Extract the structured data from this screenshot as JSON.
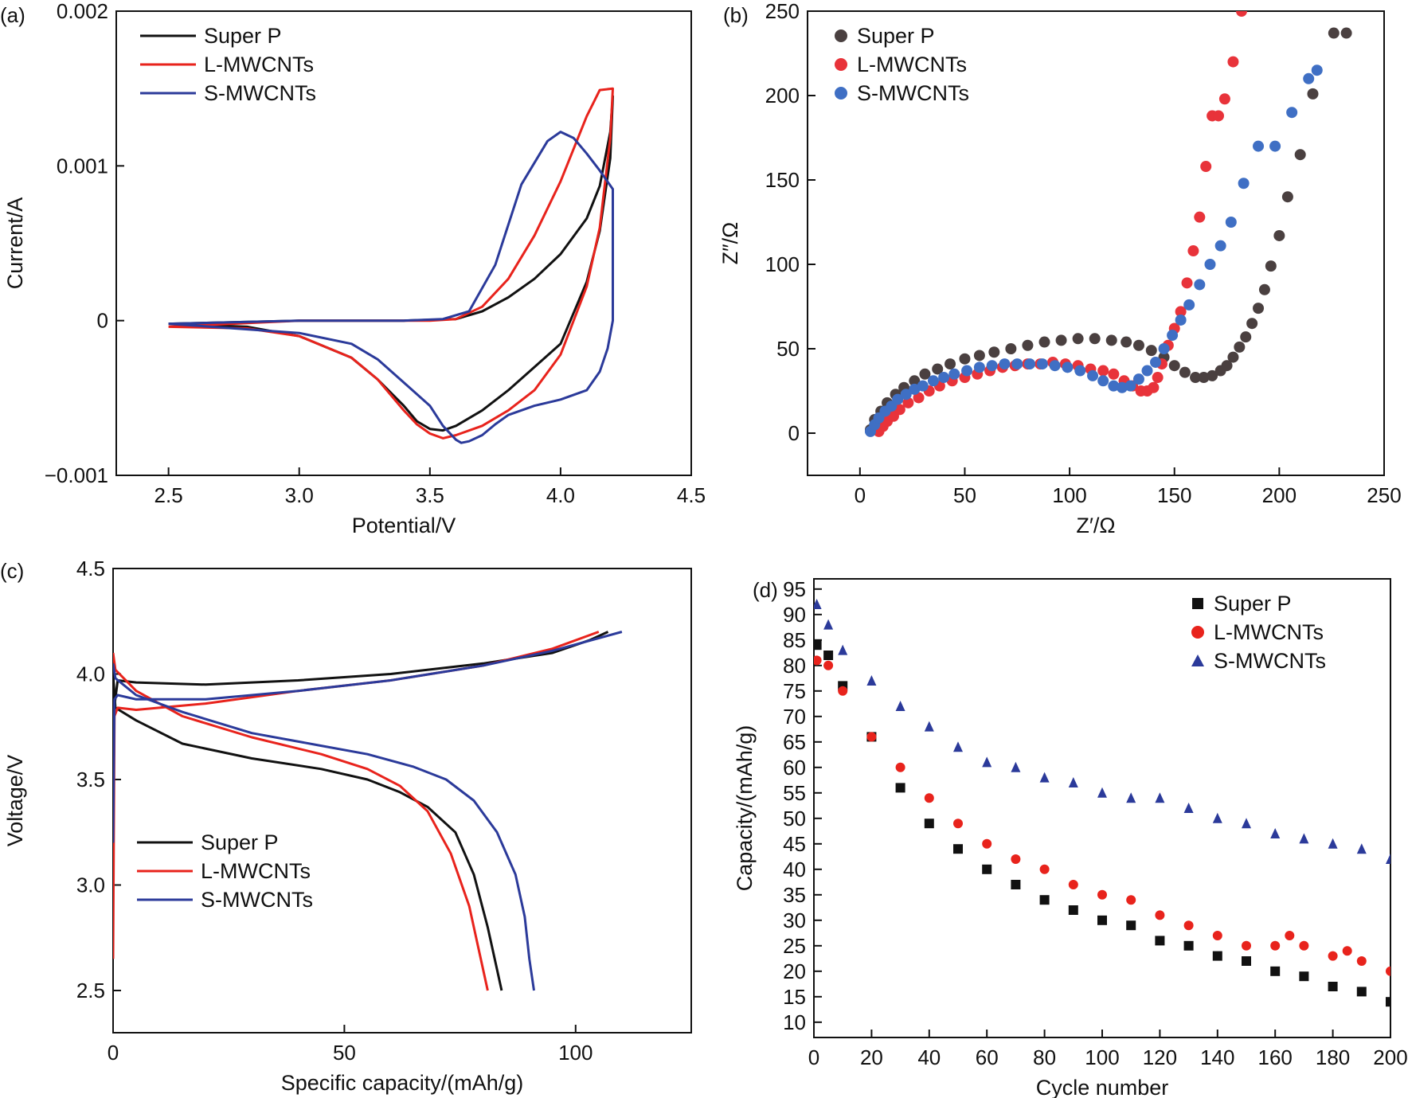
{
  "colors": {
    "super_p": "#111111",
    "l_mwcnts": "#e8231c",
    "s_mwcnts": "#2b3a9a",
    "eis_super_p": "#4a4040",
    "eis_l": "#e8333a",
    "eis_s": "#3f6fc4"
  },
  "chart_data": [
    {
      "id": "a",
      "panel_label": "(a)",
      "type": "line",
      "xlabel": "Potential/V",
      "ylabel": "Current/A",
      "xlim": [
        2.3,
        4.5
      ],
      "ylim": [
        -0.001,
        0.002
      ],
      "xticks": [
        2.5,
        3.0,
        3.5,
        4.0,
        4.5
      ],
      "xtick_labels": [
        "2.5",
        "3.0",
        "3.5",
        "4.0",
        "4.5"
      ],
      "yticks": [
        -0.001,
        0,
        0.001,
        0.002
      ],
      "ytick_labels": [
        "−0.001",
        "0",
        "0.001",
        "0.002"
      ],
      "legend_position": "top-left",
      "series": [
        {
          "name": "Super P",
          "color_key": "super_p",
          "x": [
            2.5,
            3.0,
            3.4,
            3.6,
            3.7,
            3.8,
            3.9,
            4.0,
            4.1,
            4.15,
            4.19,
            4.2,
            4.19,
            4.15,
            4.1,
            4.0,
            3.9,
            3.8,
            3.7,
            3.6,
            3.55,
            3.5,
            3.45,
            3.4,
            3.3,
            3.2,
            3.0,
            2.8,
            2.5
          ],
          "y": [
            -2e-05,
            0.0,
            0.0,
            1e-05,
            6e-05,
            0.00015,
            0.00027,
            0.00043,
            0.00066,
            0.00087,
            0.00122,
            0.00145,
            0.00105,
            0.00058,
            0.00025,
            -0.00015,
            -0.0003,
            -0.00045,
            -0.00058,
            -0.00068,
            -0.00071,
            -0.0007,
            -0.00065,
            -0.00055,
            -0.00038,
            -0.00024,
            -0.0001,
            -4e-05,
            -2e-05
          ]
        },
        {
          "name": "L-MWCNTs",
          "color_key": "l_mwcnts",
          "x": [
            2.5,
            3.0,
            3.5,
            3.6,
            3.7,
            3.8,
            3.9,
            4.0,
            4.1,
            4.15,
            4.2,
            4.19,
            4.15,
            4.1,
            4.0,
            3.9,
            3.8,
            3.7,
            3.6,
            3.55,
            3.5,
            3.45,
            3.4,
            3.3,
            3.2,
            3.0,
            2.8,
            2.5
          ],
          "y": [
            -4e-05,
            0.0,
            0.0,
            1e-05,
            9e-05,
            0.00027,
            0.00055,
            0.0009,
            0.00132,
            0.00149,
            0.0015,
            0.00118,
            0.0006,
            0.00022,
            -0.00022,
            -0.00045,
            -0.00058,
            -0.00068,
            -0.00074,
            -0.00076,
            -0.00073,
            -0.00067,
            -0.00058,
            -0.00038,
            -0.00024,
            -0.0001,
            -5e-05,
            -4e-05
          ]
        },
        {
          "name": "S-MWCNTs",
          "color_key": "s_mwcnts",
          "x": [
            2.5,
            3.0,
            3.4,
            3.55,
            3.65,
            3.75,
            3.85,
            3.95,
            4.0,
            4.05,
            4.1,
            4.15,
            4.2,
            4.2,
            4.18,
            4.15,
            4.1,
            4.0,
            3.9,
            3.8,
            3.75,
            3.7,
            3.65,
            3.62,
            3.6,
            3.55,
            3.5,
            3.4,
            3.3,
            3.2,
            3.0,
            2.5
          ],
          "y": [
            -2e-05,
            0.0,
            0.0,
            1e-05,
            6e-05,
            0.00036,
            0.00088,
            0.00116,
            0.00122,
            0.00118,
            0.00108,
            0.00097,
            0.00085,
            0.0,
            -0.00018,
            -0.00033,
            -0.00045,
            -0.00051,
            -0.00055,
            -0.00061,
            -0.00067,
            -0.00074,
            -0.00078,
            -0.00079,
            -0.00077,
            -0.00068,
            -0.00055,
            -0.0004,
            -0.00025,
            -0.00015,
            -8e-05,
            -2e-05
          ]
        }
      ]
    },
    {
      "id": "b",
      "panel_label": "(b)",
      "type": "scatter",
      "xlabel": "Z′/Ω",
      "ylabel": "Z″/Ω",
      "xlim": [
        -25,
        250
      ],
      "ylim": [
        -25,
        250
      ],
      "xticks": [
        0,
        50,
        100,
        150,
        200,
        250
      ],
      "xtick_labels": [
        "0",
        "50",
        "100",
        "150",
        "200",
        "250"
      ],
      "yticks": [
        0,
        50,
        100,
        150,
        200,
        250
      ],
      "ytick_labels": [
        "0",
        "50",
        "100",
        "150",
        "200",
        "250"
      ],
      "legend_position": "top-left",
      "series": [
        {
          "name": "Super P",
          "color_key": "eis_super_p",
          "x": [
            5,
            7,
            10,
            13,
            17,
            21,
            26,
            31,
            37,
            43,
            50,
            57,
            64,
            72,
            80,
            88,
            96,
            104,
            112,
            120,
            127,
            133,
            139,
            145,
            150,
            155,
            160,
            164,
            168,
            172,
            175,
            178,
            181,
            184,
            187,
            190,
            193,
            196,
            200,
            204,
            210,
            216,
            226,
            232
          ],
          "y": [
            2,
            8,
            13,
            18,
            23,
            27,
            31,
            35,
            38,
            41,
            44,
            46,
            48,
            50,
            52,
            54,
            55,
            56,
            56,
            55,
            54,
            52,
            49,
            45,
            40,
            36,
            33,
            33,
            34,
            37,
            40,
            45,
            51,
            57,
            65,
            74,
            85,
            99,
            117,
            140,
            165,
            201,
            237,
            237
          ]
        },
        {
          "name": "L-MWCNTs",
          "color_key": "eis_l",
          "x": [
            9,
            11,
            13,
            16,
            19,
            23,
            28,
            33,
            38,
            44,
            50,
            56,
            62,
            68,
            74,
            80,
            86,
            92,
            98,
            104,
            110,
            116,
            121,
            126,
            130,
            134,
            137,
            140,
            142,
            144,
            147,
            150,
            153,
            156,
            159,
            162,
            165,
            168,
            171,
            174,
            178,
            182
          ],
          "y": [
            1,
            4,
            7,
            10,
            14,
            18,
            21,
            25,
            28,
            31,
            33,
            35,
            37,
            39,
            40,
            41,
            41,
            42,
            41,
            40,
            38,
            37,
            35,
            31,
            28,
            25,
            25,
            27,
            33,
            41,
            52,
            62,
            72,
            89,
            108,
            128,
            158,
            188,
            188,
            198,
            220,
            250
          ]
        },
        {
          "name": "S-MWCNTs",
          "color_key": "eis_s",
          "x": [
            5,
            7,
            9,
            12,
            15,
            18,
            22,
            26,
            30,
            35,
            40,
            45,
            51,
            57,
            63,
            69,
            75,
            81,
            87,
            93,
            99,
            105,
            111,
            116,
            121,
            125,
            129,
            133,
            137,
            141,
            145,
            149,
            153,
            157,
            162,
            167,
            172,
            177,
            183,
            190,
            198,
            206,
            214,
            218
          ],
          "y": [
            1,
            5,
            9,
            13,
            16,
            20,
            23,
            26,
            28,
            31,
            33,
            35,
            37,
            39,
            40,
            41,
            41,
            41,
            41,
            40,
            39,
            37,
            34,
            31,
            28,
            27,
            28,
            32,
            37,
            42,
            50,
            58,
            67,
            76,
            88,
            100,
            111,
            125,
            148,
            170,
            170,
            190,
            210,
            215
          ]
        }
      ]
    },
    {
      "id": "c",
      "panel_label": "(c)",
      "type": "line",
      "xlabel": "Specific capacity/(mAh/g)",
      "ylabel": "Voltage/V",
      "xlim": [
        0,
        125
      ],
      "ylim": [
        2.3,
        4.5
      ],
      "xticks": [
        0,
        50,
        100
      ],
      "xtick_labels": [
        "0",
        "50",
        "100"
      ],
      "yticks": [
        2.5,
        3.0,
        3.5,
        4.0,
        4.5
      ],
      "ytick_labels": [
        "2.5",
        "3.0",
        "3.5",
        "4.0",
        "4.5"
      ],
      "legend_position": "bottom-left",
      "series": [
        {
          "name": "Super P",
          "color_key": "super_p",
          "charge_x": [
            0,
            0.3,
            1,
            5,
            20,
            40,
            60,
            80,
            95,
            103,
            107
          ],
          "charge_y": [
            3.25,
            3.85,
            3.97,
            3.96,
            3.95,
            3.97,
            4.0,
            4.05,
            4.1,
            4.16,
            4.2
          ],
          "discharge_x": [
            0,
            0.5,
            5,
            15,
            30,
            45,
            55,
            62,
            68,
            74,
            78,
            81,
            83,
            84
          ],
          "discharge_y": [
            4.0,
            3.84,
            3.78,
            3.67,
            3.6,
            3.55,
            3.5,
            3.44,
            3.37,
            3.25,
            3.05,
            2.8,
            2.6,
            2.5
          ]
        },
        {
          "name": "L-MWCNTs",
          "color_key": "l_mwcnts",
          "charge_x": [
            0,
            0.3,
            1,
            5,
            20,
            40,
            60,
            80,
            95,
            105
          ],
          "charge_y": [
            2.65,
            3.8,
            3.84,
            3.83,
            3.86,
            3.92,
            3.97,
            4.04,
            4.12,
            4.2
          ],
          "discharge_x": [
            0,
            0.5,
            5,
            15,
            30,
            45,
            55,
            62,
            68,
            73,
            77,
            79,
            81
          ],
          "discharge_y": [
            4.1,
            4.02,
            3.92,
            3.8,
            3.7,
            3.62,
            3.55,
            3.47,
            3.35,
            3.15,
            2.9,
            2.7,
            2.5
          ]
        },
        {
          "name": "S-MWCNTs",
          "color_key": "s_mwcnts",
          "charge_x": [
            0,
            0.3,
            1,
            5,
            20,
            40,
            60,
            80,
            95,
            110
          ],
          "charge_y": [
            3.2,
            3.88,
            3.9,
            3.88,
            3.88,
            3.92,
            3.97,
            4.04,
            4.11,
            4.2
          ],
          "discharge_x": [
            0,
            0.5,
            5,
            15,
            30,
            45,
            55,
            65,
            72,
            78,
            83,
            87,
            89,
            90,
            91
          ],
          "discharge_y": [
            4.05,
            3.98,
            3.9,
            3.82,
            3.72,
            3.66,
            3.62,
            3.56,
            3.5,
            3.4,
            3.25,
            3.05,
            2.85,
            2.65,
            2.5
          ]
        }
      ]
    },
    {
      "id": "d",
      "panel_label": "(d)",
      "type": "scatter",
      "xlabel": "Cycle number",
      "ylabel": "Capacity/(mAh/g)",
      "xlim": [
        0,
        200
      ],
      "ylim": [
        7,
        97
      ],
      "xticks": [
        0,
        20,
        40,
        60,
        80,
        100,
        120,
        140,
        160,
        180,
        200
      ],
      "xtick_labels": [
        "0",
        "20",
        "40",
        "60",
        "80",
        "100",
        "120",
        "140",
        "160",
        "180",
        "200"
      ],
      "yticks": [
        10,
        15,
        20,
        25,
        30,
        35,
        40,
        45,
        50,
        55,
        60,
        65,
        70,
        75,
        80,
        85,
        90,
        95
      ],
      "ytick_labels": [
        "10",
        "15",
        "20",
        "25",
        "30",
        "35",
        "40",
        "45",
        "50",
        "55",
        "60",
        "65",
        "70",
        "75",
        "80",
        "85",
        "90",
        "95"
      ],
      "legend_position": "top-right",
      "series": [
        {
          "name": "Super P",
          "marker": "square",
          "color_key": "super_p",
          "x": [
            1,
            5,
            10,
            20,
            30,
            40,
            50,
            60,
            70,
            80,
            90,
            100,
            110,
            120,
            130,
            140,
            150,
            160,
            170,
            180,
            190,
            200
          ],
          "y": [
            84,
            82,
            76,
            66,
            56,
            49,
            44,
            40,
            37,
            34,
            32,
            30,
            29,
            26,
            25,
            23,
            22,
            20,
            19,
            17,
            16,
            14
          ]
        },
        {
          "name": "L-MWCNTs",
          "marker": "circle",
          "color_key": "l_mwcnts",
          "x": [
            1,
            5,
            10,
            20,
            30,
            40,
            50,
            60,
            70,
            80,
            90,
            100,
            110,
            120,
            130,
            140,
            150,
            160,
            165,
            170,
            180,
            185,
            190,
            200
          ],
          "y": [
            81,
            80,
            75,
            66,
            60,
            54,
            49,
            45,
            42,
            40,
            37,
            35,
            34,
            31,
            29,
            27,
            25,
            25,
            27,
            25,
            23,
            24,
            22,
            20
          ]
        },
        {
          "name": "S-MWCNTs",
          "marker": "triangle",
          "color_key": "s_mwcnts",
          "x": [
            1,
            5,
            10,
            20,
            30,
            40,
            50,
            60,
            70,
            80,
            90,
            100,
            110,
            120,
            130,
            140,
            150,
            160,
            170,
            180,
            190,
            200
          ],
          "y": [
            92,
            88,
            83,
            77,
            72,
            68,
            64,
            61,
            60,
            58,
            57,
            55,
            54,
            54,
            52,
            50,
            49,
            47,
            46,
            45,
            44,
            42
          ]
        }
      ]
    }
  ]
}
